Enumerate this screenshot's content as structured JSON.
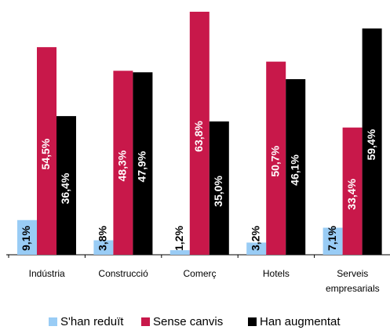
{
  "chart_data": {
    "type": "bar",
    "categories": [
      "Indústria",
      "Construcció",
      "Comerç",
      "Hotels",
      "Serveis empresarials"
    ],
    "series": [
      {
        "name": "S'han reduït",
        "color": "#99ccf5",
        "values": [
          9.1,
          3.8,
          1.2,
          3.2,
          7.1
        ],
        "value_labels": [
          "9,1%",
          "3,8%",
          "1,2%",
          "3,2%",
          "7,1%"
        ]
      },
      {
        "name": "Sense canvis",
        "color": "#c8184a",
        "values": [
          54.5,
          48.3,
          63.8,
          50.7,
          33.4
        ],
        "value_labels": [
          "54,5%",
          "48,3%",
          "63,8%",
          "50,7%",
          "33,4%"
        ]
      },
      {
        "name": "Han augmentat",
        "color": "#000000",
        "values": [
          36.4,
          47.9,
          35.0,
          46.1,
          59.4
        ],
        "value_labels": [
          "36,4%",
          "47,9%",
          "35,0%",
          "46,1%",
          "59,4%"
        ]
      }
    ],
    "ylim": [
      0,
      64
    ]
  }
}
